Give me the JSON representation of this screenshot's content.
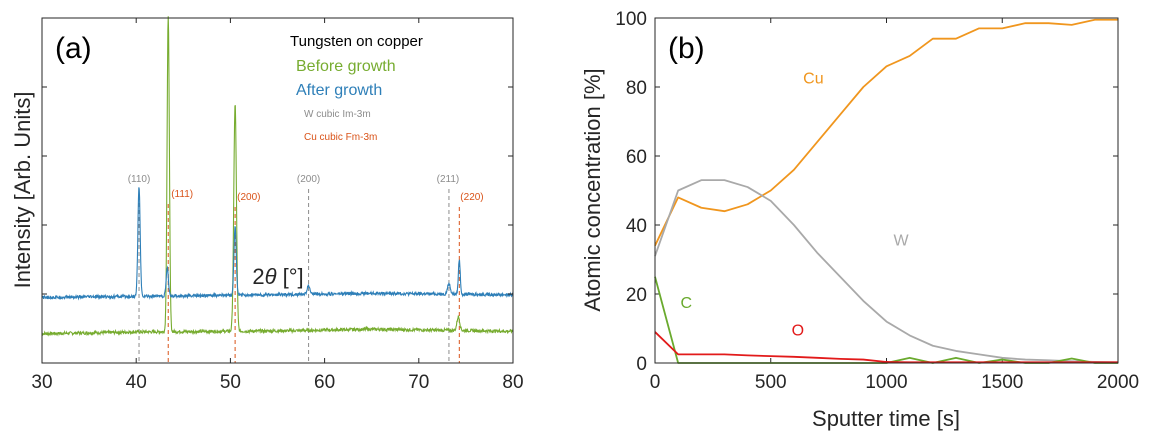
{
  "colors": {
    "before_growth": "#77ac30",
    "after_growth": "#2e7fb8",
    "w_ref": "#8c8c8c",
    "cu_ref": "#d95319",
    "cu_line": "#f0961e",
    "w_line": "#a9a9a9",
    "c_line": "#6aaa2e",
    "o_line": "#e21a1a",
    "axis": "#262626"
  },
  "chart_data": [
    {
      "type": "line",
      "panel_label": "(a)",
      "xlabel": "2θ [°]",
      "xlabel_prefix": "2",
      "xlabel_theta": "θ",
      "xlabel_unit": " [°]",
      "ylabel": "Intensity [Arb. Units]",
      "xlim": [
        30,
        80
      ],
      "xticks": [
        30,
        40,
        50,
        60,
        70,
        80
      ],
      "ylim": [
        0,
        100
      ],
      "legend": {
        "title": "Tungsten on copper",
        "entries": [
          "Before growth",
          "After growth",
          "W cubic Im-3m",
          "Cu cubic Fm-3m"
        ],
        "placement": "top-right"
      },
      "series": [
        {
          "name": "Before growth",
          "baseline": [
            [
              30,
              8.5
            ],
            [
              40,
              9.0
            ],
            [
              55,
              9.3
            ],
            [
              65,
              9.8
            ],
            [
              80,
              9.2
            ]
          ],
          "peaks": [
            [
              43.4,
              92,
              0.12
            ],
            [
              50.5,
              66,
              0.14
            ],
            [
              74.2,
              4,
              0.15
            ]
          ]
        },
        {
          "name": "After growth",
          "baseline": [
            [
              30,
              19.0
            ],
            [
              40,
              19.3
            ],
            [
              55,
              19.8
            ],
            [
              65,
              20.2
            ],
            [
              80,
              19.8
            ]
          ],
          "peaks": [
            [
              40.3,
              32,
              0.12
            ],
            [
              43.3,
              8,
              0.12
            ],
            [
              50.5,
              20,
              0.12
            ],
            [
              58.3,
              2.5,
              0.15
            ],
            [
              73.2,
              3,
              0.15
            ],
            [
              74.3,
              10,
              0.1
            ]
          ]
        }
      ],
      "reflections": [
        {
          "label": "(110)",
          "x": 40.3,
          "phase": "W"
        },
        {
          "label": "(111)",
          "x": 43.4,
          "phase": "Cu"
        },
        {
          "label": "(200)",
          "x": 50.5,
          "phase": "Cu"
        },
        {
          "label": "(200)",
          "x": 58.3,
          "phase": "W"
        },
        {
          "label": "(211)",
          "x": 73.2,
          "phase": "W"
        },
        {
          "label": "(220)",
          "x": 74.3,
          "phase": "Cu"
        }
      ]
    },
    {
      "type": "line",
      "panel_label": "(b)",
      "xlabel": "Sputter time [s]",
      "ylabel": "Atomic concentration [%]",
      "xlim": [
        0,
        2000
      ],
      "xticks": [
        0,
        500,
        1000,
        1500,
        2000
      ],
      "ylim": [
        0,
        100
      ],
      "yticks": [
        0,
        20,
        40,
        60,
        80,
        100
      ],
      "series": [
        {
          "name": "Cu",
          "x": [
            0,
            100,
            200,
            300,
            400,
            500,
            600,
            700,
            800,
            900,
            1000,
            1100,
            1200,
            1300,
            1400,
            1500,
            1600,
            1700,
            1800,
            1900,
            2000
          ],
          "y": [
            34,
            48,
            45,
            44,
            46,
            50,
            56,
            64,
            72,
            80,
            86,
            89,
            94,
            94,
            97,
            97,
            98.5,
            98.5,
            98,
            99.5,
            99.5
          ]
        },
        {
          "name": "W",
          "x": [
            0,
            100,
            200,
            300,
            400,
            500,
            600,
            700,
            800,
            900,
            1000,
            1100,
            1200,
            1300,
            1400,
            1500,
            1600,
            1700,
            1800,
            1900,
            2000
          ],
          "y": [
            31,
            50,
            53,
            53,
            51,
            47,
            40,
            32,
            25,
            18,
            12,
            8,
            5,
            3.5,
            2.5,
            1.5,
            1,
            0.8,
            0.5,
            0.3,
            0.2
          ]
        },
        {
          "name": "C",
          "x": [
            0,
            100,
            200,
            300,
            400,
            500,
            600,
            700,
            800,
            900,
            1000,
            1100,
            1200,
            1300,
            1400,
            1500,
            1600,
            1700,
            1800,
            1900,
            2000
          ],
          "y": [
            25,
            0,
            0,
            0,
            0,
            0,
            0,
            0,
            0,
            0,
            0,
            1.5,
            0,
            1.5,
            0,
            1,
            0,
            0,
            1.3,
            0,
            0
          ]
        },
        {
          "name": "O",
          "x": [
            0,
            100,
            200,
            300,
            400,
            500,
            600,
            700,
            800,
            900,
            1000,
            1100,
            1200,
            1300,
            1400,
            1500,
            1600,
            1700,
            1800,
            1900,
            2000
          ],
          "y": [
            9,
            2.5,
            2.5,
            2.5,
            2.2,
            2,
            1.8,
            1.5,
            1.2,
            1,
            0.3,
            0.2,
            0.2,
            0.2,
            0.2,
            0.2,
            0.2,
            0.2,
            0.2,
            0.2,
            0.2
          ]
        }
      ],
      "series_labels": [
        {
          "name": "Cu",
          "x": 640,
          "y": 81
        },
        {
          "name": "W",
          "x": 1030,
          "y": 34
        },
        {
          "name": "C",
          "x": 110,
          "y": 16
        },
        {
          "name": "O",
          "x": 590,
          "y": 8
        }
      ]
    }
  ]
}
